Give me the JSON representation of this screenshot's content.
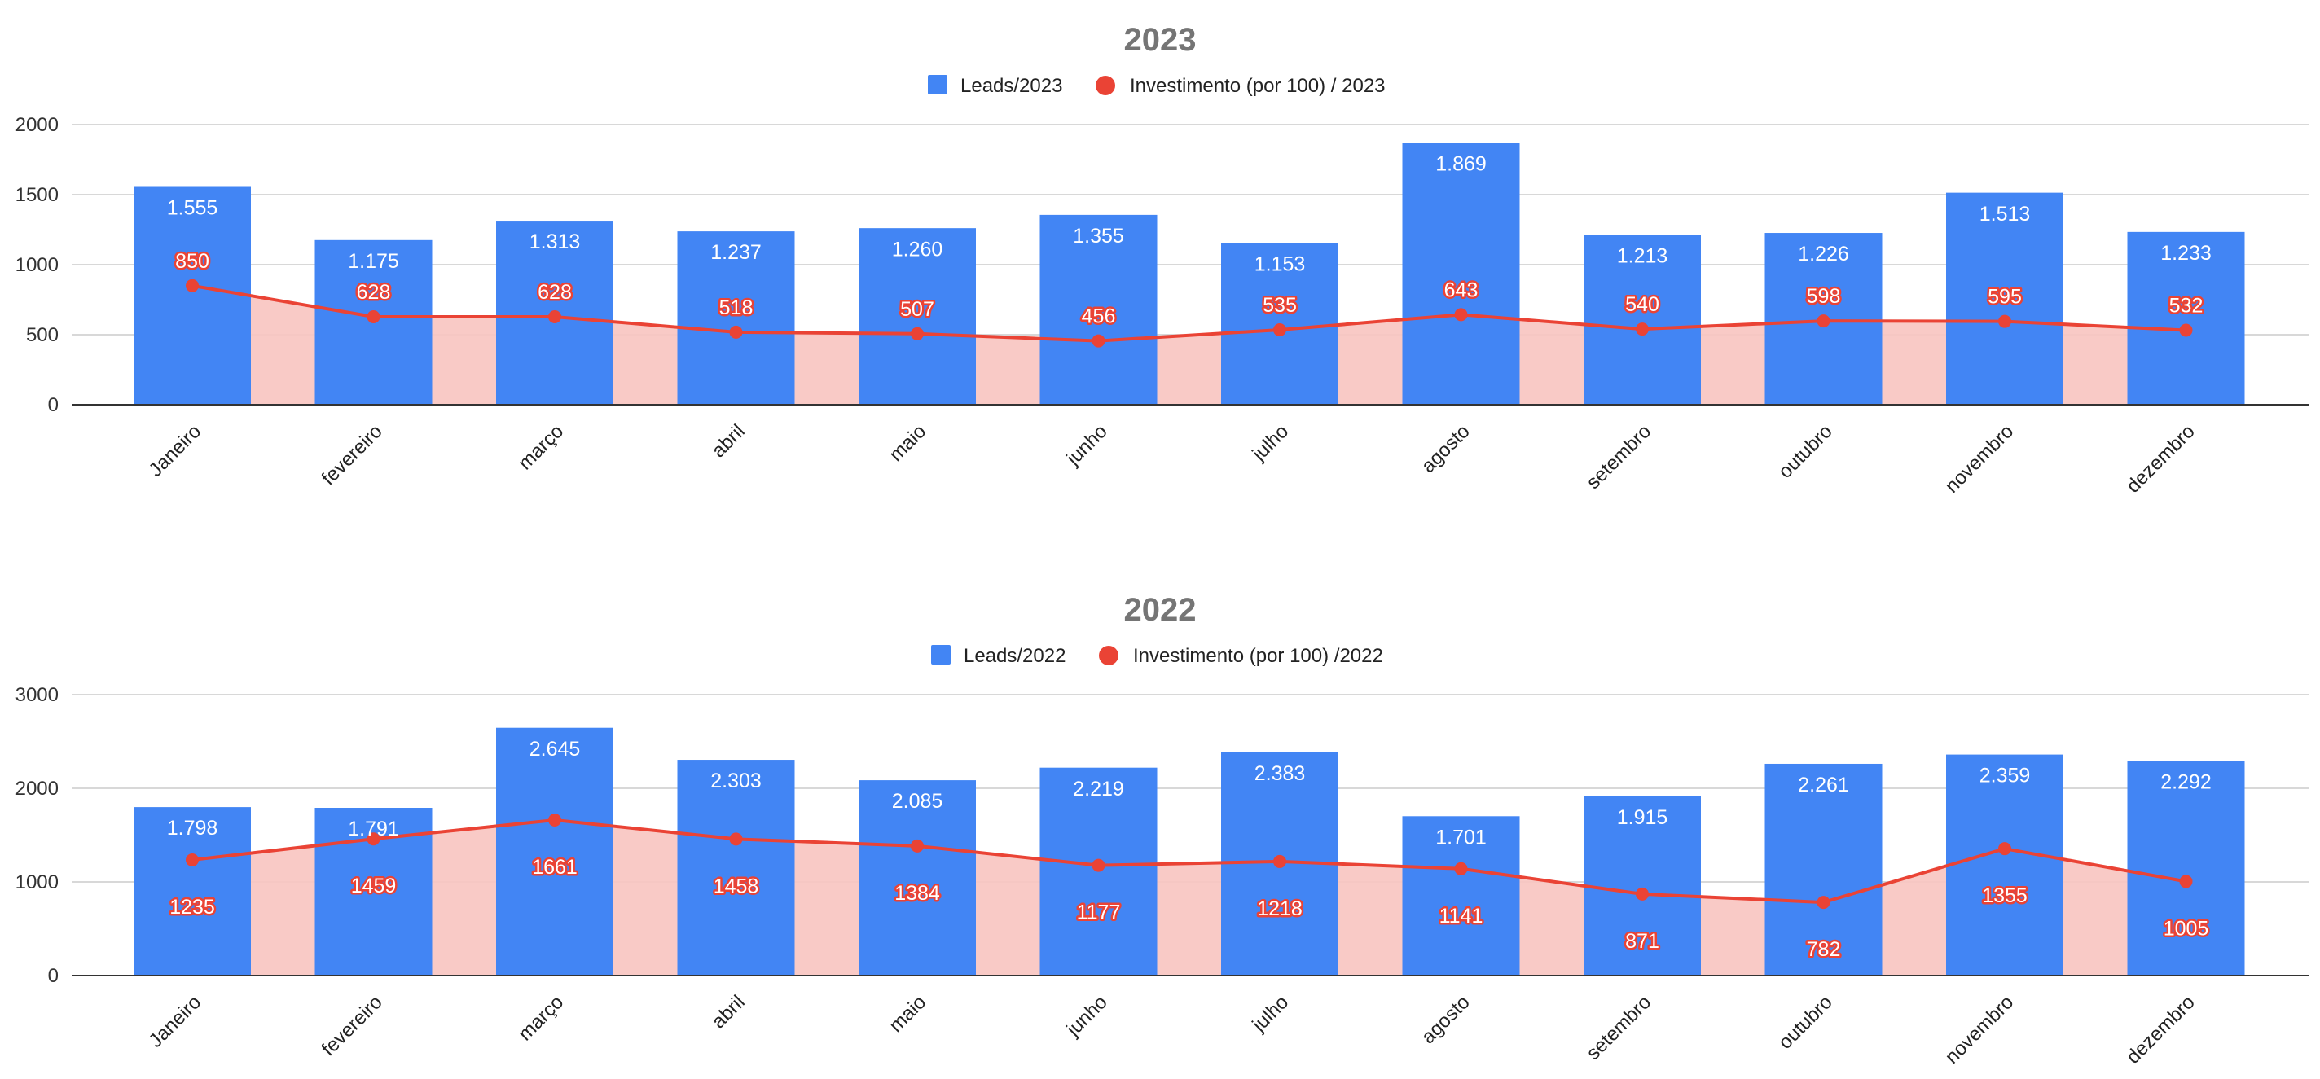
{
  "chart_data": [
    {
      "type": "bar",
      "title": "2023",
      "legend_position": "top",
      "grid": true,
      "ylim": [
        0,
        2000
      ],
      "yticks": [
        "0",
        "500",
        "1000",
        "1500",
        "2000"
      ],
      "categories": [
        "Janeiro",
        "fevereiro",
        "março",
        "abril",
        "maio",
        "junho",
        "julho",
        "agosto",
        "setembro",
        "outubro",
        "novembro",
        "dezembro"
      ],
      "series": [
        {
          "name": "Leads/2023",
          "kind": "bar",
          "color": "#4285f4",
          "values": [
            1555,
            1175,
            1313,
            1237,
            1260,
            1355,
            1153,
            1869,
            1213,
            1226,
            1513,
            1233
          ],
          "labels": [
            "1.555",
            "1.175",
            "1.313",
            "1.237",
            "1.260",
            "1.355",
            "1.153",
            "1.869",
            "1.213",
            "1.226",
            "1.513",
            "1.233"
          ]
        },
        {
          "name": "Investimento (por 100) / 2023",
          "kind": "line-area",
          "color": "#ea4335",
          "fill": "#f8c5c1",
          "values": [
            850,
            628,
            628,
            518,
            507,
            456,
            535,
            643,
            540,
            598,
            595,
            532
          ],
          "labels": [
            "850",
            "628",
            "628",
            "518",
            "507",
            "456",
            "535",
            "643",
            "540",
            "598",
            "595",
            "532"
          ]
        }
      ]
    },
    {
      "type": "bar",
      "title": "2022",
      "legend_position": "top",
      "grid": true,
      "ylim": [
        0,
        3000
      ],
      "yticks": [
        "0",
        "1000",
        "2000",
        "3000"
      ],
      "categories": [
        "Janeiro",
        "fevereiro",
        "março",
        "abril",
        "maio",
        "junho",
        "julho",
        "agosto",
        "setembro",
        "outubro",
        "novembro",
        "dezembro"
      ],
      "series": [
        {
          "name": "Leads/2022",
          "kind": "bar",
          "color": "#4285f4",
          "values": [
            1798,
            1791,
            2645,
            2303,
            2085,
            2219,
            2383,
            1701,
            1915,
            2261,
            2359,
            2292
          ],
          "labels": [
            "1.798",
            "1.791",
            "2.645",
            "2.303",
            "2.085",
            "2.219",
            "2.383",
            "1.701",
            "1.915",
            "2.261",
            "2.359",
            "2.292"
          ]
        },
        {
          "name": "Investimento (por 100) /2022",
          "kind": "line-area",
          "color": "#ea4335",
          "fill": "#f8c5c1",
          "values": [
            1235,
            1459,
            1661,
            1458,
            1384,
            1177,
            1218,
            1141,
            871,
            782,
            1355,
            1005
          ],
          "labels": [
            "1235",
            "1459",
            "1661",
            "1458",
            "1384",
            "1177",
            "1218",
            "1141",
            "871",
            "782",
            "1355",
            "1005"
          ]
        }
      ]
    }
  ]
}
